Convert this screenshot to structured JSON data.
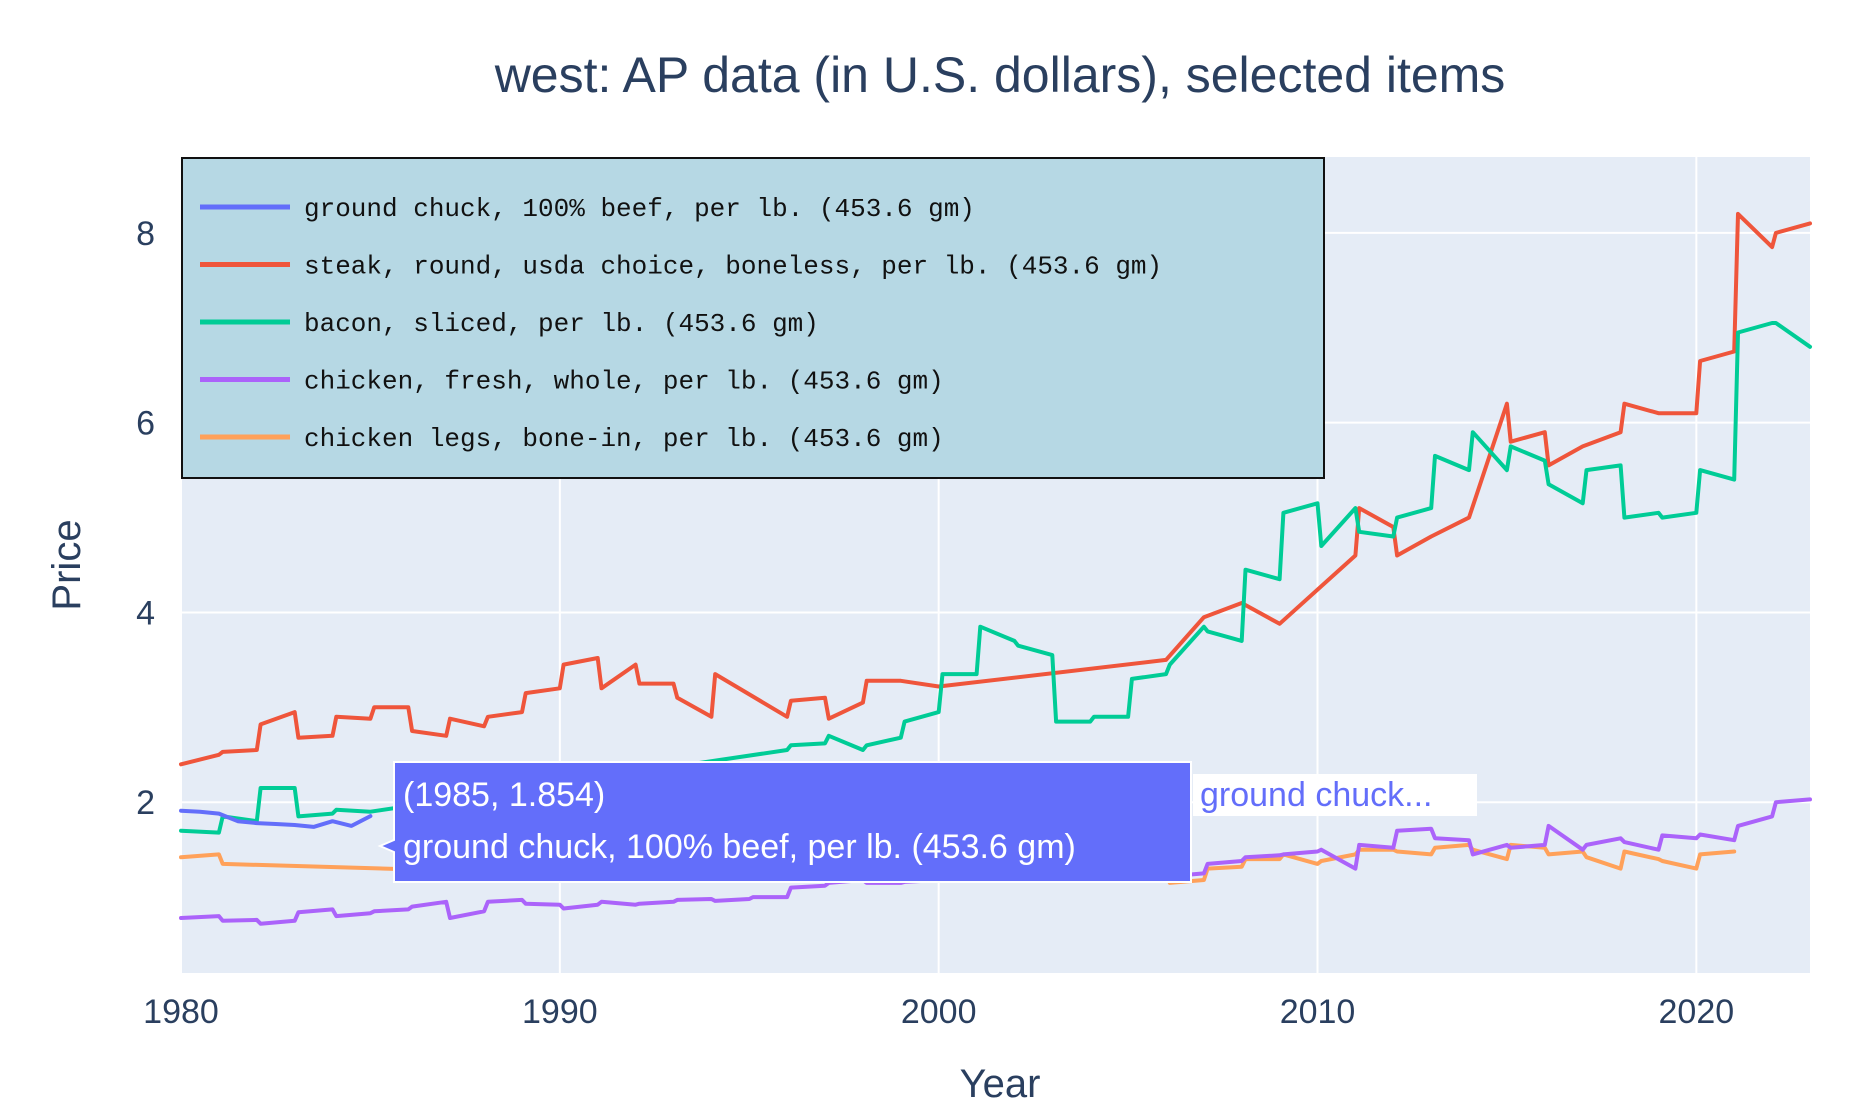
{
  "chart_data": {
    "type": "line",
    "title": "west: AP data (in U.S. dollars), selected items",
    "xlabel": "Year",
    "ylabel": "Price",
    "xlim": [
      1980,
      2023
    ],
    "ylim": [
      0.2,
      8.8
    ],
    "x_ticks": [
      1980,
      1990,
      2000,
      2010,
      2020
    ],
    "y_ticks": [
      2,
      4,
      6,
      8
    ],
    "grid": true,
    "legend_position": "top-left",
    "background_color": "#e5ecf6",
    "legend_background": "#b6d8e4",
    "series": [
      {
        "name": "ground chuck, 100% beef, per lb. (453.6 gm)",
        "color": "#636efa",
        "x": [
          1980,
          1980.5,
          1981,
          1981.5,
          1982,
          1982.5,
          1983,
          1983.5,
          1984,
          1984.5,
          1985
        ],
        "y": [
          1.91,
          1.9,
          1.88,
          1.8,
          1.78,
          1.77,
          1.76,
          1.74,
          1.8,
          1.75,
          1.854
        ]
      },
      {
        "name": "steak, round, usda choice, boneless, per lb. (453.6 gm)",
        "color": "#ef553b",
        "x": [
          1980,
          1981,
          1981.1,
          1982,
          1982.1,
          1983,
          1983.1,
          1984,
          1984.1,
          1985,
          1985.1,
          1986,
          1986.1,
          1987,
          1987.1,
          1988,
          1988.1,
          1989,
          1989.1,
          1990,
          1990.1,
          1991,
          1991.1,
          1992,
          1992.1,
          1993,
          1993.1,
          1994,
          1994.1,
          1996,
          1996.1,
          1997,
          1997.1,
          1998,
          1998.1,
          1999,
          2000,
          2006,
          2007,
          2008,
          2009,
          2011,
          2011.1,
          2012,
          2012.1,
          2013,
          2014,
          2015,
          2015.1,
          2016,
          2016.1,
          2017,
          2018,
          2018.1,
          2019,
          2020,
          2020.1,
          2021,
          2021.1,
          2022,
          2022.1,
          2023
        ],
        "y": [
          2.4,
          2.5,
          2.53,
          2.55,
          2.82,
          2.95,
          2.68,
          2.7,
          2.9,
          2.88,
          3.0,
          3.0,
          2.75,
          2.7,
          2.88,
          2.8,
          2.9,
          2.95,
          3.15,
          3.2,
          3.45,
          3.52,
          3.2,
          3.45,
          3.25,
          3.25,
          3.1,
          2.9,
          3.35,
          2.9,
          3.07,
          3.1,
          2.88,
          3.05,
          3.28,
          3.28,
          3.22,
          3.5,
          3.95,
          4.1,
          3.88,
          4.6,
          5.1,
          4.9,
          4.6,
          4.8,
          5.0,
          6.2,
          5.8,
          5.9,
          5.55,
          5.75,
          5.9,
          6.2,
          6.1,
          6.1,
          6.65,
          6.75,
          8.2,
          7.85,
          8.0,
          8.1
        ]
      },
      {
        "name": "bacon, sliced, per lb. (453.6 gm)",
        "color": "#00cc96",
        "x": [
          1980,
          1981,
          1981.1,
          1982,
          1982.1,
          1983,
          1983.1,
          1984,
          1984.1,
          1985,
          1996,
          1996.1,
          1997,
          1997.1,
          1998,
          1998.1,
          1999,
          1999.1,
          2000,
          2000.1,
          2001,
          2001.1,
          2002,
          2002.1,
          2003,
          2003.1,
          2004,
          2004.1,
          2005,
          2005.1,
          2006,
          2006.1,
          2007,
          2007.1,
          2008,
          2008.1,
          2009,
          2009.1,
          2010,
          2010.1,
          2011,
          2011.1,
          2012,
          2012.1,
          2013,
          2013.1,
          2014,
          2014.1,
          2015,
          2015.1,
          2016,
          2016.1,
          2017,
          2017.1,
          2018,
          2018.1,
          2019,
          2019.1,
          2020,
          2020.1,
          2021,
          2021.1,
          2022,
          2022.1,
          2023
        ],
        "y": [
          1.7,
          1.68,
          1.85,
          1.8,
          2.15,
          2.15,
          1.85,
          1.88,
          1.92,
          1.9,
          2.55,
          2.6,
          2.62,
          2.7,
          2.55,
          2.6,
          2.68,
          2.85,
          2.95,
          3.35,
          3.35,
          3.85,
          3.7,
          3.65,
          3.55,
          2.85,
          2.85,
          2.9,
          2.9,
          3.3,
          3.35,
          3.45,
          3.85,
          3.8,
          3.7,
          4.45,
          4.35,
          5.05,
          5.15,
          4.7,
          5.1,
          4.85,
          4.8,
          5.0,
          5.1,
          5.65,
          5.5,
          5.9,
          5.5,
          5.75,
          5.6,
          5.35,
          5.15,
          5.5,
          5.55,
          5.0,
          5.05,
          5.0,
          5.05,
          5.5,
          5.4,
          6.95,
          7.05,
          7.05,
          6.8
        ]
      },
      {
        "name": "chicken, fresh, whole, per lb. (453.6 gm)",
        "color": "#ab63fa",
        "x": [
          1980,
          1981,
          1981.1,
          1982,
          1982.1,
          1983,
          1983.1,
          1984,
          1984.1,
          1985,
          1985.1,
          1986,
          1986.1,
          1987,
          1987.1,
          1988,
          1988.1,
          1989,
          1989.1,
          1990,
          1990.1,
          1991,
          1991.1,
          1992,
          1992.1,
          1993,
          1993.1,
          1994,
          1994.1,
          1995,
          1995.1,
          1996,
          1996.1,
          1997,
          1997.1,
          1998,
          1998.1,
          1999,
          1999.1,
          2000,
          2000.1,
          2001,
          2001.1,
          2002,
          2002.1,
          2003,
          2003.1,
          2004,
          2004.1,
          2005,
          2005.1,
          2006,
          2006.1,
          2007,
          2007.1,
          2008,
          2008.1,
          2009,
          2009.1,
          2010,
          2010.1,
          2011,
          2011.1,
          2012,
          2012.1,
          2013,
          2013.1,
          2014,
          2014.1,
          2015,
          2015.1,
          2016,
          2016.1,
          2017,
          2017.1,
          2018,
          2018.1,
          2019,
          2019.1,
          2020,
          2020.1,
          2021,
          2021.1,
          2022,
          2022.1,
          2023
        ],
        "y": [
          0.78,
          0.8,
          0.75,
          0.76,
          0.72,
          0.75,
          0.84,
          0.87,
          0.8,
          0.83,
          0.85,
          0.87,
          0.9,
          0.95,
          0.78,
          0.85,
          0.95,
          0.97,
          0.93,
          0.92,
          0.88,
          0.92,
          0.95,
          0.92,
          0.93,
          0.95,
          0.97,
          0.98,
          0.96,
          0.98,
          1.0,
          1.0,
          1.1,
          1.12,
          1.15,
          1.18,
          1.15,
          1.15,
          1.16,
          1.18,
          1.2,
          1.22,
          1.22,
          1.2,
          1.22,
          1.22,
          1.25,
          1.25,
          1.27,
          1.24,
          1.22,
          1.2,
          1.22,
          1.25,
          1.35,
          1.38,
          1.42,
          1.44,
          1.45,
          1.48,
          1.5,
          1.3,
          1.55,
          1.52,
          1.7,
          1.72,
          1.62,
          1.6,
          1.45,
          1.55,
          1.52,
          1.55,
          1.75,
          1.5,
          1.55,
          1.62,
          1.58,
          1.5,
          1.65,
          1.62,
          1.66,
          1.6,
          1.75,
          1.85,
          2.0,
          2.03
        ]
      },
      {
        "name": "chicken legs, bone-in, per lb. (453.6 gm)",
        "color": "#ffa15a",
        "x": [
          1980,
          1981,
          1981.1,
          1994,
          2006,
          2006.1,
          2007,
          2007.1,
          2008,
          2008.1,
          2009,
          2009.1,
          2010,
          2010.1,
          2011,
          2011.1,
          2012,
          2012.1,
          2013,
          2013.1,
          2014,
          2014.1,
          2015,
          2015.1,
          2016,
          2016.1,
          2017,
          2017.1,
          2018,
          2018.1,
          2019,
          2019.1,
          2020,
          2020.1,
          2021
        ],
        "y": [
          1.42,
          1.45,
          1.35,
          1.2,
          1.25,
          1.15,
          1.18,
          1.3,
          1.32,
          1.4,
          1.4,
          1.45,
          1.35,
          1.38,
          1.45,
          1.5,
          1.5,
          1.48,
          1.45,
          1.52,
          1.55,
          1.5,
          1.4,
          1.55,
          1.52,
          1.45,
          1.48,
          1.42,
          1.3,
          1.48,
          1.4,
          1.38,
          1.3,
          1.45,
          1.48
        ]
      }
    ]
  },
  "hover": {
    "point": "(1985, 1.854)",
    "series_name": "ground chuck, 100% beef, per lb. (453.6 gm)",
    "side_label": "ground chuck..."
  }
}
